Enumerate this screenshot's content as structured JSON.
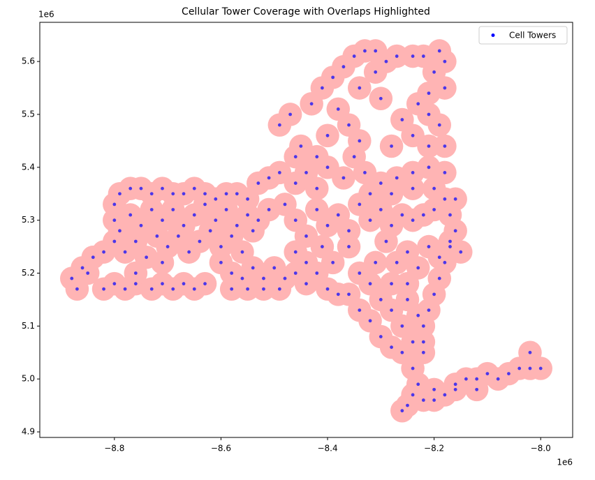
{
  "chart_data": {
    "type": "scatter",
    "title": "Cellular Tower Coverage with Overlaps Highlighted",
    "x_offset_label": "1e6",
    "y_offset_label": "1e6",
    "xlim": [
      -8.94,
      -7.94
    ],
    "ylim": [
      4.8895,
      5.674
    ],
    "xticks": [
      {
        "value": -8.8,
        "label": "−8.8"
      },
      {
        "value": -8.6,
        "label": "−8.6"
      },
      {
        "value": -8.4,
        "label": "−8.4"
      },
      {
        "value": -8.2,
        "label": "−8.2"
      },
      {
        "value": -8.0,
        "label": "−8.0"
      }
    ],
    "yticks": [
      4.9,
      {
        "value": 5.0,
        "label": "5.0"
      },
      5.1,
      5.2,
      5.3,
      5.4,
      5.5,
      5.6
    ],
    "legend": "upper right",
    "coverage_radius": 0.022,
    "coverage_color": "#ffb4b4",
    "series": [
      {
        "name": "Cell Towers",
        "color": "blue",
        "x": [
          -8.88,
          -8.87,
          -8.85,
          -8.82,
          -8.8,
          -8.78,
          -8.76,
          -8.73,
          -8.71,
          -8.69,
          -8.67,
          -8.65,
          -8.63,
          -8.86,
          -8.84,
          -8.82,
          -8.8,
          -8.79,
          -8.8,
          -8.8,
          -8.79,
          -8.77,
          -8.75,
          -8.73,
          -8.71,
          -8.69,
          -8.67,
          -8.65,
          -8.63,
          -8.61,
          -8.59,
          -8.57,
          -8.55,
          -8.53,
          -8.51,
          -8.49,
          -8.77,
          -8.75,
          -8.73,
          -8.71,
          -8.69,
          -8.67,
          -8.65,
          -8.63,
          -8.61,
          -8.59,
          -8.57,
          -8.55,
          -8.53,
          -8.51,
          -8.78,
          -8.76,
          -8.74,
          -8.72,
          -8.7,
          -8.68,
          -8.66,
          -8.64,
          -8.62,
          -8.6,
          -8.58,
          -8.56,
          -8.54,
          -8.76,
          -8.71,
          -8.6,
          -8.58,
          -8.56,
          -8.54,
          -8.52,
          -8.5,
          -8.48,
          -8.46,
          -8.44,
          -8.42,
          -8.4,
          -8.38,
          -8.58,
          -8.55,
          -8.52,
          -8.49,
          -8.48,
          -8.46,
          -8.44,
          -8.42,
          -8.4,
          -8.38,
          -8.36,
          -8.34,
          -8.32,
          -8.3,
          -8.28,
          -8.26,
          -8.24,
          -8.22,
          -8.2,
          -8.18,
          -8.46,
          -8.44,
          -8.41,
          -8.39,
          -8.36,
          -8.34,
          -8.31,
          -8.29,
          -8.27,
          -8.25,
          -8.23,
          -8.21,
          -8.19,
          -8.17,
          -8.15,
          -8.49,
          -8.47,
          -8.45,
          -8.43,
          -8.41,
          -8.39,
          -8.37,
          -8.35,
          -8.33,
          -8.31,
          -8.29,
          -8.27,
          -8.24,
          -8.22,
          -8.19,
          -8.18,
          -8.2,
          -8.18,
          -8.21,
          -8.23,
          -8.21,
          -8.19,
          -8.26,
          -8.24,
          -8.21,
          -8.18,
          -8.28,
          -8.31,
          -8.34,
          -8.3,
          -8.38,
          -8.36,
          -8.34,
          -8.4,
          -8.42,
          -8.46,
          -8.44,
          -8.4,
          -8.37,
          -8.35,
          -8.33,
          -8.3,
          -8.27,
          -8.24,
          -8.21,
          -8.18,
          -8.2,
          -8.24,
          -8.28,
          -8.32,
          -8.42,
          -8.46,
          -8.16,
          -8.17,
          -8.16,
          -8.17,
          -8.18,
          -8.19,
          -8.2,
          -8.21,
          -8.22,
          -8.22,
          -8.22,
          -8.36,
          -8.34,
          -8.32,
          -8.3,
          -8.28,
          -8.26,
          -8.24,
          -8.26,
          -8.28,
          -8.3,
          -8.25,
          -8.23,
          -8.25,
          -8.28,
          -8.32,
          -8.24,
          -8.23,
          -8.24,
          -8.25,
          -8.26,
          -8.22,
          -8.2,
          -8.18,
          -8.16,
          -8.14,
          -8.12,
          -8.1,
          -8.08,
          -8.06,
          -8.04,
          -8.02,
          -8.0,
          -8.02,
          -8.12,
          -8.16,
          -8.2
        ],
        "y": [
          5.19,
          5.17,
          5.2,
          5.17,
          5.18,
          5.17,
          5.18,
          5.17,
          5.18,
          5.17,
          5.18,
          5.17,
          5.18,
          5.21,
          5.23,
          5.24,
          5.26,
          5.28,
          5.3,
          5.33,
          5.35,
          5.36,
          5.36,
          5.35,
          5.36,
          5.35,
          5.35,
          5.36,
          5.35,
          5.34,
          5.35,
          5.35,
          5.34,
          5.37,
          5.38,
          5.39,
          5.31,
          5.29,
          5.32,
          5.3,
          5.32,
          5.29,
          5.31,
          5.33,
          5.3,
          5.32,
          5.29,
          5.31,
          5.3,
          5.32,
          5.24,
          5.26,
          5.23,
          5.27,
          5.25,
          5.27,
          5.24,
          5.26,
          5.28,
          5.25,
          5.27,
          5.24,
          5.28,
          5.2,
          5.22,
          5.22,
          5.2,
          5.19,
          5.21,
          5.19,
          5.21,
          5.19,
          5.2,
          5.18,
          5.2,
          5.17,
          5.16,
          5.17,
          5.17,
          5.17,
          5.17,
          5.33,
          5.3,
          5.27,
          5.32,
          5.29,
          5.31,
          5.28,
          5.33,
          5.3,
          5.32,
          5.29,
          5.31,
          5.3,
          5.31,
          5.32,
          5.34,
          5.24,
          5.22,
          5.25,
          5.22,
          5.25,
          5.2,
          5.22,
          5.26,
          5.22,
          5.24,
          5.21,
          5.25,
          5.23,
          5.26,
          5.24,
          5.48,
          5.5,
          5.44,
          5.52,
          5.55,
          5.57,
          5.59,
          5.61,
          5.62,
          5.62,
          5.6,
          5.61,
          5.61,
          5.61,
          5.62,
          5.6,
          5.58,
          5.55,
          5.54,
          5.52,
          5.5,
          5.48,
          5.49,
          5.46,
          5.44,
          5.44,
          5.44,
          5.58,
          5.55,
          5.53,
          5.51,
          5.48,
          5.45,
          5.46,
          5.42,
          5.42,
          5.39,
          5.4,
          5.38,
          5.42,
          5.39,
          5.37,
          5.38,
          5.39,
          5.4,
          5.39,
          5.36,
          5.36,
          5.35,
          5.35,
          5.36,
          5.37,
          5.34,
          5.31,
          5.28,
          5.25,
          5.22,
          5.19,
          5.16,
          5.13,
          5.1,
          5.07,
          5.05,
          5.16,
          5.13,
          5.11,
          5.08,
          5.06,
          5.05,
          5.07,
          5.1,
          5.13,
          5.15,
          5.15,
          5.12,
          5.18,
          5.18,
          5.18,
          5.02,
          4.99,
          4.97,
          4.95,
          4.94,
          4.96,
          4.96,
          4.97,
          4.98,
          5.0,
          5.0,
          5.01,
          5.0,
          5.01,
          5.02,
          5.02,
          5.02,
          5.05,
          4.98,
          4.99,
          4.98
        ]
      }
    ]
  }
}
